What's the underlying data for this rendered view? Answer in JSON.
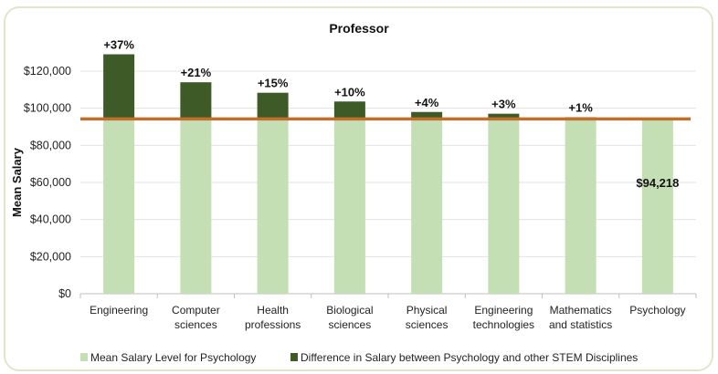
{
  "chart_data": {
    "type": "bar",
    "stacked": true,
    "title": "Professor",
    "xlabel": "",
    "ylabel": "Mean Salary",
    "ylim": [
      0,
      130000
    ],
    "yticks": [
      0,
      20000,
      40000,
      60000,
      80000,
      100000,
      120000
    ],
    "ytick_labels": [
      "$0",
      "$20,000",
      "$40,000",
      "$60,000",
      "$80,000",
      "$100,000",
      "$120,000"
    ],
    "grid": true,
    "categories": [
      [
        "Engineering"
      ],
      [
        "Computer",
        "sciences"
      ],
      [
        "Health",
        "professions"
      ],
      [
        "Biological",
        "sciences"
      ],
      [
        "Physical",
        "sciences"
      ],
      [
        "Engineering",
        "technologies"
      ],
      [
        "Mathematics",
        "and statistics"
      ],
      [
        "Psychology"
      ]
    ],
    "series": [
      {
        "name": "Mean Salary Level for Psychology",
        "color": "#c5dfb4",
        "values": [
          94218,
          94218,
          94218,
          94218,
          94218,
          94218,
          94218,
          94218
        ]
      },
      {
        "name": "Difference in Salary between Psychology and other STEM Disciplines",
        "color": "#3d5a27",
        "values": [
          34860,
          19786,
          14133,
          9422,
          3769,
          2827,
          942,
          0
        ]
      }
    ],
    "data_labels": [
      "+37%",
      "+21%",
      "+15%",
      "+10%",
      "+4%",
      "+3%",
      "+1%",
      "$94,218"
    ],
    "reference_line": {
      "value": 94218,
      "color": "#c0702a"
    },
    "legend_position": "bottom"
  }
}
